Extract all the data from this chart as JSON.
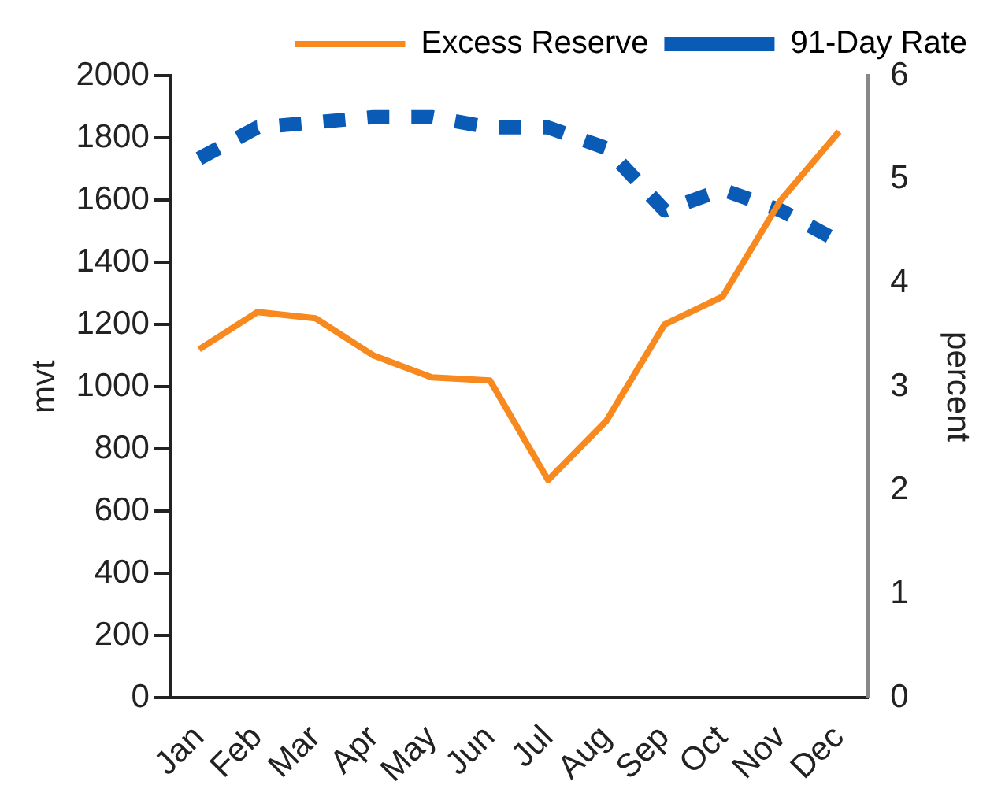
{
  "chart_data": {
    "type": "line",
    "categories": [
      "Jan",
      "Feb",
      "Mar",
      "Apr",
      "May",
      "Jun",
      "Jul",
      "Aug",
      "Sep",
      "Oct",
      "Nov",
      "Dec"
    ],
    "series": [
      {
        "name": "Excess Reserve",
        "color": "#f7891f",
        "line_style": "solid",
        "values": [
          1120,
          1240,
          1220,
          1100,
          1030,
          1020,
          700,
          890,
          1200,
          1290,
          1600,
          1820
        ]
      },
      {
        "name": "91-Day Rate",
        "color": "#0a5bb5",
        "line_style": "dashed",
        "axis": "y2",
        "values": [
          5.2,
          5.5,
          5.55,
          5.6,
          5.6,
          5.5,
          5.5,
          5.3,
          4.7,
          4.9,
          4.7,
          4.4
        ]
      }
    ],
    "ylabel": "mvt",
    "y2label": "percent",
    "ylim": [
      0,
      2000
    ],
    "yticks": [
      0,
      200,
      400,
      600,
      800,
      1000,
      1200,
      1400,
      1600,
      1800,
      2000
    ],
    "y2lim": [
      0,
      6
    ],
    "y2ticks": [
      0,
      1,
      2,
      3,
      4,
      5,
      6
    ],
    "legend": "top",
    "grid": false,
    "marker": "none"
  }
}
